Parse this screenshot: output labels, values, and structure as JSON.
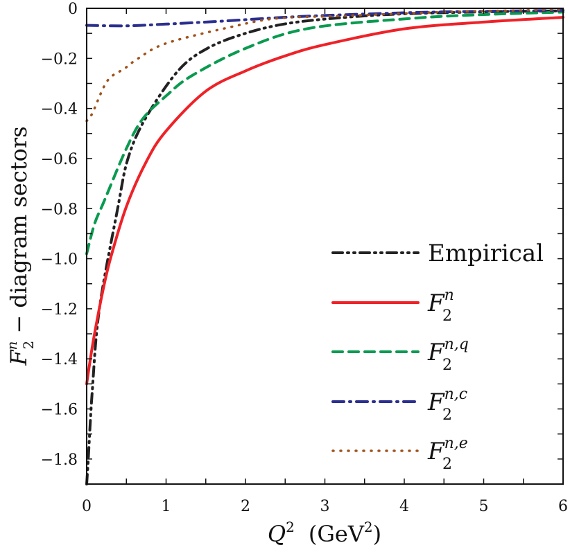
{
  "chart_data": {
    "type": "line",
    "title": "",
    "xlabel": {
      "main": "Q",
      "sup": "2",
      "unit_pre": "(GeV",
      "unit_sup": "2",
      "unit_post": ")"
    },
    "ylabel": {
      "main": "F",
      "sub": "2",
      "sup": "n",
      "rest": " − diagram sectors"
    },
    "xlim": [
      0,
      6
    ],
    "ylim": [
      -1.9,
      0
    ],
    "xticks": [
      "0",
      "1",
      "2",
      "3",
      "4",
      "5",
      "6"
    ],
    "yticks": [
      "0",
      "−0.2",
      "−0.4",
      "−0.6",
      "−0.8",
      "−1.0",
      "−1.2",
      "−1.4",
      "−1.6",
      "−1.8"
    ],
    "grid": false,
    "legend_position": "right",
    "series": [
      {
        "name": "Empirical",
        "sup": "",
        "color": "#222222",
        "style": "dash-dot-dot",
        "x": [
          0,
          0.02,
          0.07,
          0.16,
          0.39,
          0.52,
          0.74,
          1.15,
          1.52,
          2.0,
          2.54,
          3.26,
          4.0,
          5.0,
          6.0
        ],
        "y": [
          -1.9,
          -1.8,
          -1.53,
          -1.2,
          -0.8,
          -0.6,
          -0.44,
          -0.25,
          -0.16,
          -0.1,
          -0.06,
          -0.036,
          -0.022,
          -0.014,
          -0.01
        ]
      },
      {
        "name": "F",
        "sub": "2",
        "sup": "n",
        "color": "#ee2228",
        "style": "solid",
        "x": [
          0,
          0.05,
          0.1,
          0.2,
          0.3,
          0.5,
          0.75,
          1.0,
          1.5,
          2.0,
          2.5,
          3.0,
          4.0,
          5.0,
          6.0
        ],
        "y": [
          -1.5,
          -1.393,
          -1.298,
          -1.134,
          -0.999,
          -0.792,
          -0.613,
          -0.49,
          -0.331,
          -0.25,
          -0.19,
          -0.145,
          -0.082,
          -0.055,
          -0.036
        ]
      },
      {
        "name": "F",
        "sub": "2",
        "sup": "n,q",
        "color": "#0a9a50",
        "style": "dashed",
        "x": [
          0,
          0.1,
          0.22,
          0.5,
          0.71,
          1.0,
          1.32,
          2.0,
          2.8,
          4.1,
          5.0,
          6.0
        ],
        "y": [
          -0.98,
          -0.86,
          -0.77,
          -0.56,
          -0.44,
          -0.35,
          -0.27,
          -0.16,
          -0.08,
          -0.04,
          -0.025,
          -0.015
        ]
      },
      {
        "name": "F",
        "sub": "2",
        "sup": "n,c",
        "color": "#2b2f8f",
        "style": "dash-dot",
        "x": [
          0,
          0.5,
          1.0,
          1.61,
          2.68,
          4.0,
          5.0,
          6.0
        ],
        "y": [
          -0.068,
          -0.07,
          -0.063,
          -0.053,
          -0.033,
          -0.018,
          -0.012,
          -0.008
        ]
      },
      {
        "name": "F",
        "sub": "2",
        "sup": "n,e",
        "color": "#a0521a",
        "style": "dotted",
        "x": [
          0,
          0.07,
          0.26,
          0.48,
          0.65,
          1.0,
          1.81,
          2.4,
          3.26,
          4.5,
          6.0
        ],
        "y": [
          -0.45,
          -0.42,
          -0.29,
          -0.24,
          -0.2,
          -0.14,
          -0.075,
          -0.04,
          -0.03,
          -0.015,
          -0.005
        ]
      }
    ]
  }
}
